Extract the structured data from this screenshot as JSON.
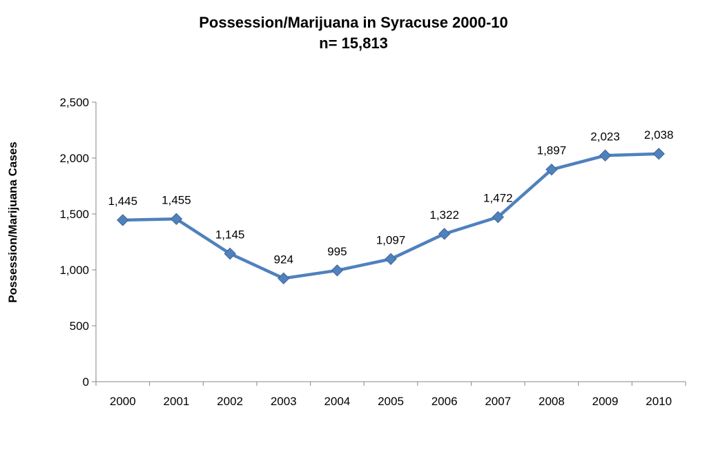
{
  "chart_data": {
    "type": "line",
    "title": "Possession/Marijuana in Syracuse 2000-10",
    "subtitle": "n= 15,813",
    "xlabel": "",
    "ylabel": "Possession/Marijuana Cases",
    "categories": [
      "2000",
      "2001",
      "2002",
      "2003",
      "2004",
      "2005",
      "2006",
      "2007",
      "2008",
      "2009",
      "2010"
    ],
    "series": [
      {
        "values": [
          1445,
          1455,
          1145,
          924,
          995,
          1097,
          1322,
          1472,
          1897,
          2023,
          2038
        ],
        "labels": [
          "1,445",
          "1,455",
          "1,145",
          "924",
          "995",
          "1,097",
          "1,322",
          "1,472",
          "1,897",
          "2,023",
          "2,038"
        ]
      }
    ],
    "ylim": [
      0,
      2500
    ],
    "yticks": [
      0,
      500,
      1000,
      1500,
      2000,
      2500
    ],
    "ytick_labels": [
      "0",
      "500",
      "1,000",
      "1,500",
      "2,000",
      "2,500"
    ],
    "grid": false,
    "legend": "none",
    "marker": "diamond",
    "line_color": "#4F81BD"
  }
}
